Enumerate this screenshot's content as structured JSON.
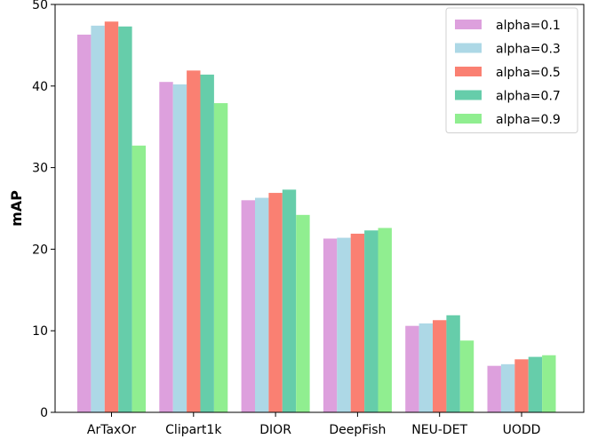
{
  "chart_data": {
    "type": "bar",
    "ylabel": "mAP",
    "xlabel": "",
    "ylim": [
      0,
      50
    ],
    "yticks": [
      0,
      10,
      20,
      30,
      40,
      50
    ],
    "grid": false,
    "legend_position": "top-right",
    "categories": [
      "ArTaxOr",
      "Clipart1k",
      "DIOR",
      "DeepFish",
      "NEU-DET",
      "UODD"
    ],
    "series": [
      {
        "name": "alpha=0.1",
        "color": "#dda0dd",
        "values": [
          46.3,
          40.5,
          26.0,
          21.3,
          10.6,
          5.7
        ]
      },
      {
        "name": "alpha=0.3",
        "color": "#add8e6",
        "values": [
          47.4,
          40.2,
          26.3,
          21.4,
          10.9,
          5.9
        ]
      },
      {
        "name": "alpha=0.5",
        "color": "#fa8072",
        "values": [
          47.9,
          41.9,
          26.9,
          21.9,
          11.3,
          6.5
        ]
      },
      {
        "name": "alpha=0.7",
        "color": "#66cdaa",
        "values": [
          47.3,
          41.4,
          27.3,
          22.3,
          11.9,
          6.8
        ]
      },
      {
        "name": "alpha=0.9",
        "color": "#90ee90",
        "values": [
          32.7,
          37.9,
          24.2,
          22.6,
          8.8,
          7.0
        ]
      }
    ]
  }
}
